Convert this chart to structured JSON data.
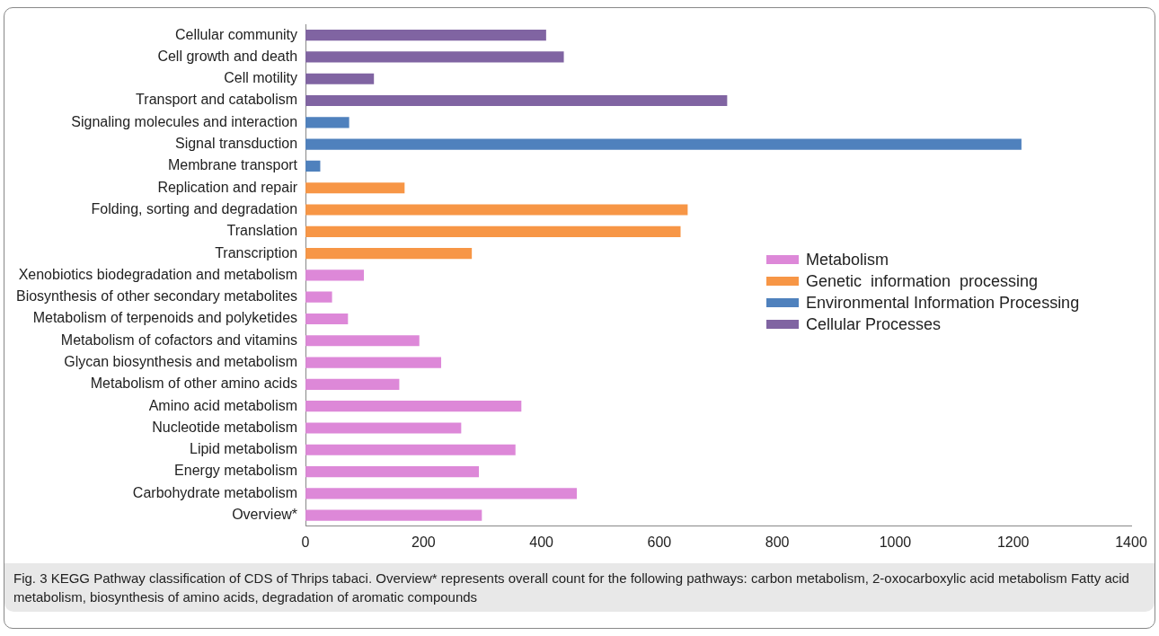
{
  "chart_data": {
    "type": "bar",
    "orientation": "horizontal",
    "categories": [
      "Cellular community",
      "Cell growth and death",
      "Cell motility",
      "Transport and catabolism",
      "Signaling molecules and interaction",
      "Signal transduction",
      "Membrane transport",
      "Replication and repair",
      "Folding, sorting and degradation",
      "Translation",
      "Transcription",
      "Xenobiotics biodegradation and metabolism",
      "Biosynthesis of other secondary metabolites",
      "Metabolism of terpenoids and polyketides",
      "Metabolism of cofactors and vitamins",
      "Glycan biosynthesis and metabolism",
      "Metabolism of other amino acids",
      "Amino acid metabolism",
      "Nucleotide metabolism",
      "Lipid metabolism",
      "Energy metabolism",
      "Carbohydrate metabolism",
      "Overview*"
    ],
    "series": [
      {
        "name": "Metabolism",
        "color": "#dd88d8",
        "values": [
          null,
          null,
          null,
          null,
          null,
          null,
          null,
          null,
          null,
          null,
          null,
          99,
          45,
          72,
          193,
          230,
          159,
          366,
          264,
          356,
          294,
          460,
          299
        ]
      },
      {
        "name": "Genetic  information  processing",
        "color": "#f79646",
        "values": [
          null,
          null,
          null,
          null,
          null,
          null,
          null,
          168,
          648,
          636,
          282,
          null,
          null,
          null,
          null,
          null,
          null,
          null,
          null,
          null,
          null,
          null,
          null
        ]
      },
      {
        "name": "Environmental Information Processing",
        "color": "#4f81bd",
        "values": [
          null,
          null,
          null,
          null,
          74,
          1214,
          25,
          null,
          null,
          null,
          null,
          null,
          null,
          null,
          null,
          null,
          null,
          null,
          null,
          null,
          null,
          null,
          null
        ]
      },
      {
        "name": "Cellular Processes",
        "color": "#8064a2",
        "values": [
          408,
          438,
          116,
          715,
          null,
          null,
          null,
          null,
          null,
          null,
          null,
          null,
          null,
          null,
          null,
          null,
          null,
          null,
          null,
          null,
          null,
          null,
          null
        ]
      }
    ],
    "xlim": [
      0,
      1400
    ],
    "xticks": [
      0,
      200,
      400,
      600,
      800,
      1000,
      1200,
      1400
    ],
    "grid": false,
    "legend": "right",
    "annotations": [
      "Fig. 3  KEGG Pathway classification of CDS of Thrips tabaci. Overview* represents overall count for the following pathways: carbon metabolism, 2-oxocarboxylic acid metabolism Fatty acid metabolism, biosynthesis of amino acids, degradation of aromatic compounds"
    ]
  }
}
